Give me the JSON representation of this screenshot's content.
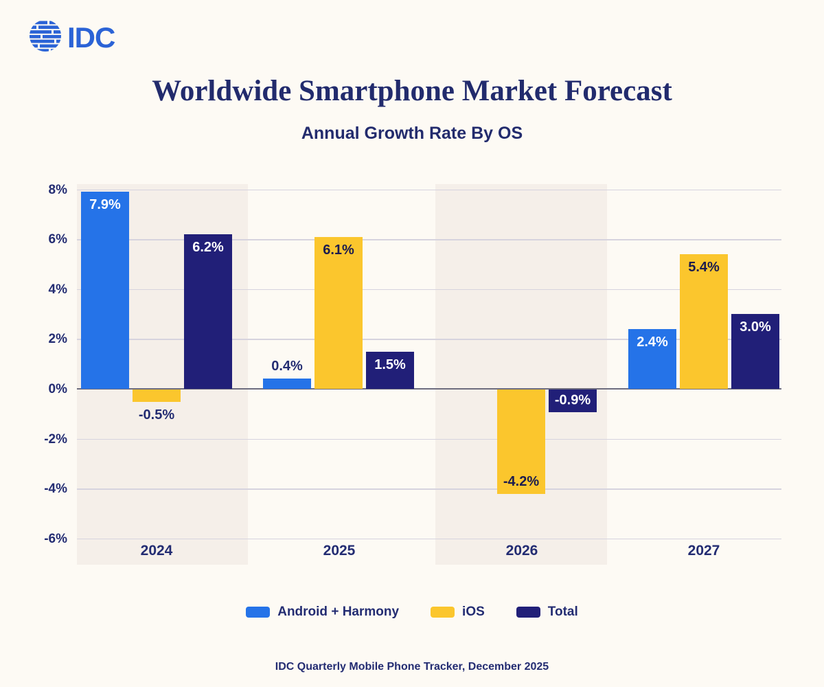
{
  "header": {
    "logo_text": "IDC",
    "title": "Worldwide Smartphone Market Forecast",
    "subtitle": "Annual Growth Rate By OS"
  },
  "chart_data": {
    "type": "bar",
    "title": "Worldwide Smartphone Market Forecast",
    "subtitle": "Annual Growth Rate By OS",
    "categories": [
      "2024",
      "2025",
      "2026",
      "2027"
    ],
    "series": [
      {
        "name": "Android + Harmony",
        "color": "#2573e8",
        "points": [
          {
            "category": "2024",
            "value": 7.9,
            "label": "7.9%",
            "label_position": "inside-top",
            "label_color": "#ffffff"
          },
          {
            "category": "2025",
            "value": 0.4,
            "label": "0.4%",
            "label_position": "above",
            "label_color": "#232c72"
          },
          {
            "category": "2026",
            "value": null,
            "label": null,
            "label_position": null,
            "label_color": null
          },
          {
            "category": "2027",
            "value": 2.4,
            "label": "2.4%",
            "label_position": "inside-top",
            "label_color": "#ffffff"
          }
        ]
      },
      {
        "name": "iOS",
        "color": "#fbc62d",
        "points": [
          {
            "category": "2024",
            "value": -0.5,
            "label": "-0.5%",
            "label_position": "below",
            "label_color": "#232c72"
          },
          {
            "category": "2025",
            "value": 6.1,
            "label": "6.1%",
            "label_position": "inside-top",
            "label_color": "#1b1b4e"
          },
          {
            "category": "2026",
            "value": -4.2,
            "label": "-4.2%",
            "label_position": "inside-bottom",
            "label_color": "#1b1b4e"
          },
          {
            "category": "2027",
            "value": 5.4,
            "label": "5.4%",
            "label_position": "inside-top",
            "label_color": "#1b1b4e"
          }
        ]
      },
      {
        "name": "Total",
        "color": "#211f78",
        "points": [
          {
            "category": "2024",
            "value": 6.2,
            "label": "6.2%",
            "label_position": "inside-top",
            "label_color": "#ffffff"
          },
          {
            "category": "2025",
            "value": 1.5,
            "label": "1.5%",
            "label_position": "inside-top",
            "label_color": "#ffffff"
          },
          {
            "category": "2026",
            "value": -0.9,
            "label": "-0.9%",
            "label_position": "inside-middle",
            "label_color": "#ffffff"
          },
          {
            "category": "2027",
            "value": 3.0,
            "label": "3.0%",
            "label_position": "inside-top",
            "label_color": "#ffffff"
          }
        ]
      }
    ],
    "ylim": [
      -6,
      8
    ],
    "ytick_step": 2,
    "yticks": [
      {
        "value": 8,
        "label": "8%"
      },
      {
        "value": 6,
        "label": "6%"
      },
      {
        "value": 4,
        "label": "4%"
      },
      {
        "value": 2,
        "label": "2%"
      },
      {
        "value": 0,
        "label": "0%"
      },
      {
        "value": -2,
        "label": "-2%"
      },
      {
        "value": -4,
        "label": "-4%"
      },
      {
        "value": -6,
        "label": "-6%"
      }
    ],
    "ylabel": "",
    "xlabel": "",
    "grid": true,
    "legend_position": "bottom",
    "plot_bands": {
      "striped_categories": [
        "2024",
        "2026"
      ],
      "band_color": "#f5efe9"
    }
  },
  "legend": {
    "items": [
      {
        "label": "Android + Harmony",
        "color": "#2573e8"
      },
      {
        "label": "iOS",
        "color": "#fbc62d"
      },
      {
        "label": "Total",
        "color": "#211f78"
      }
    ]
  },
  "footer": {
    "source": "IDC Quarterly Mobile Phone Tracker, December 2025"
  },
  "colors": {
    "background": "#fdfaf4",
    "band": "#f5efe9",
    "gridline": "#d6d3de",
    "zero_line": "#6d6c7e",
    "text_navy": "#232c72",
    "logo_blue": "#2b63d6"
  }
}
